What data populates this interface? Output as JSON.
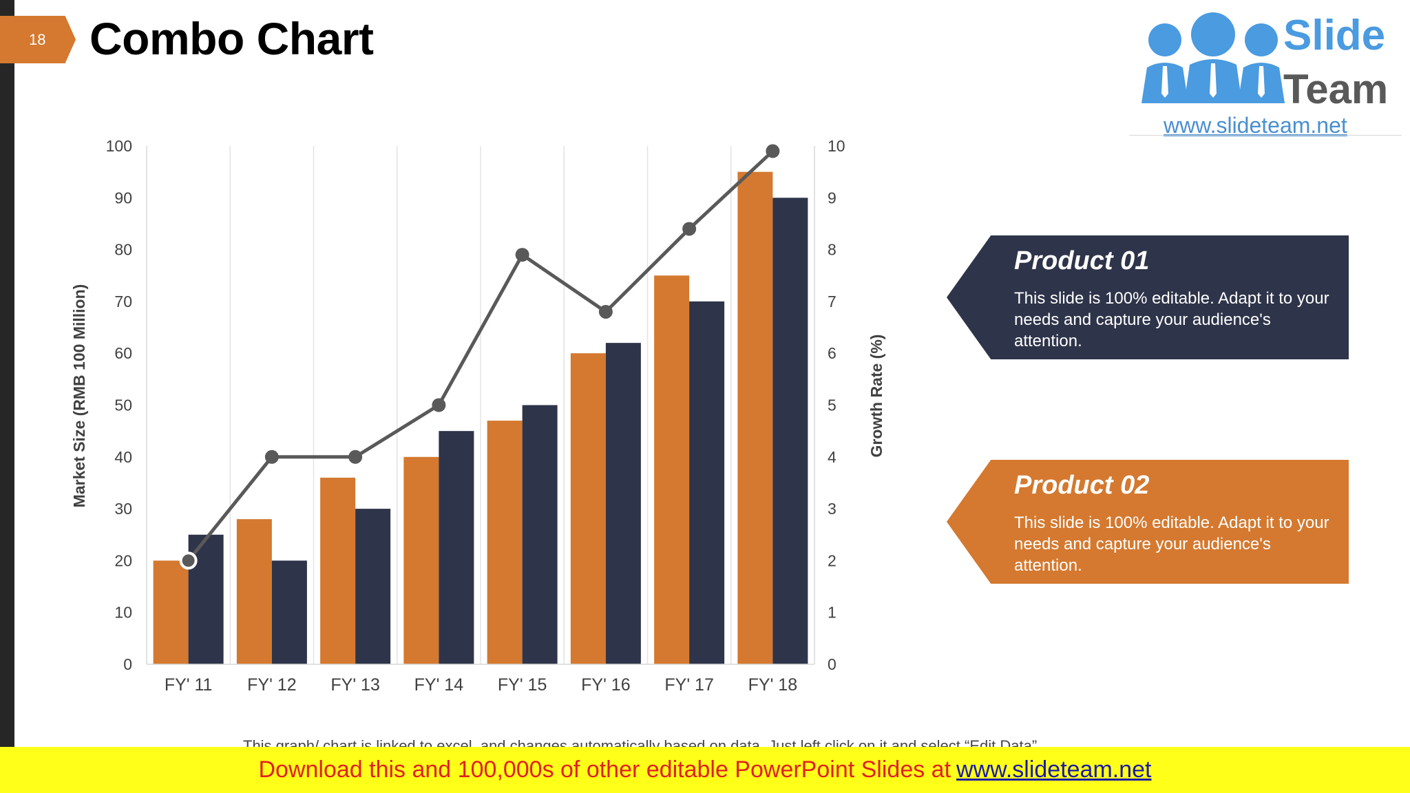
{
  "slide": {
    "number": "18",
    "title": "Combo Chart"
  },
  "logo": {
    "word1": "Slide",
    "word2": "Team",
    "url": "www.slideteam.net",
    "icon": "people-group-icon",
    "color_blue": "#4a9be0",
    "color_gray": "#595959"
  },
  "callouts": [
    {
      "heading": "Product 01",
      "body": "This slide is 100% editable. Adapt it to your needs and capture your audience's attention.",
      "color": "#2e3449"
    },
    {
      "heading": "Product 02",
      "body": "This slide is 100% editable. Adapt it to your needs and capture your audience's attention.",
      "color": "#d4792f"
    }
  ],
  "note": "This graph/ chart is linked to excel, and changes automatically based on data. Just left click on it and select “Edit Data”.",
  "banner": {
    "text": "Download this and 100,000s of other editable PowerPoint Slides at",
    "link": "www.slideteam.net"
  },
  "chart_data": {
    "type": "bar",
    "combo_line": true,
    "categories": [
      "FY' 11",
      "FY' 12",
      "FY' 13",
      "FY' 14",
      "FY' 15",
      "FY' 16",
      "FY' 17",
      "FY' 18"
    ],
    "series": [
      {
        "values": [
          20,
          28,
          36,
          40,
          47,
          60,
          75,
          95
        ],
        "color": "#d4792f",
        "axis": "left",
        "kind": "bar"
      },
      {
        "values": [
          25,
          20,
          30,
          45,
          50,
          62,
          70,
          90
        ],
        "color": "#2e3449",
        "axis": "left",
        "kind": "bar"
      },
      {
        "values": [
          2,
          4,
          4,
          5,
          7.9,
          6.8,
          8.4,
          9.9
        ],
        "color": "#595959",
        "axis": "right",
        "kind": "line"
      }
    ],
    "ylabel": "Market Size (RMB 100 Million)",
    "ylabel_right": "Growth Rate (%)",
    "ylim": [
      0,
      100
    ],
    "yticks": [
      "0",
      "10",
      "20",
      "30",
      "40",
      "50",
      "60",
      "70",
      "80",
      "90",
      "100"
    ],
    "ylim_right": [
      0,
      10
    ],
    "yticks_right": [
      "0",
      "1",
      "2",
      "3",
      "4",
      "5",
      "6",
      "7",
      "8",
      "9",
      "10"
    ],
    "grid": "vertical-only",
    "legend": "none"
  }
}
